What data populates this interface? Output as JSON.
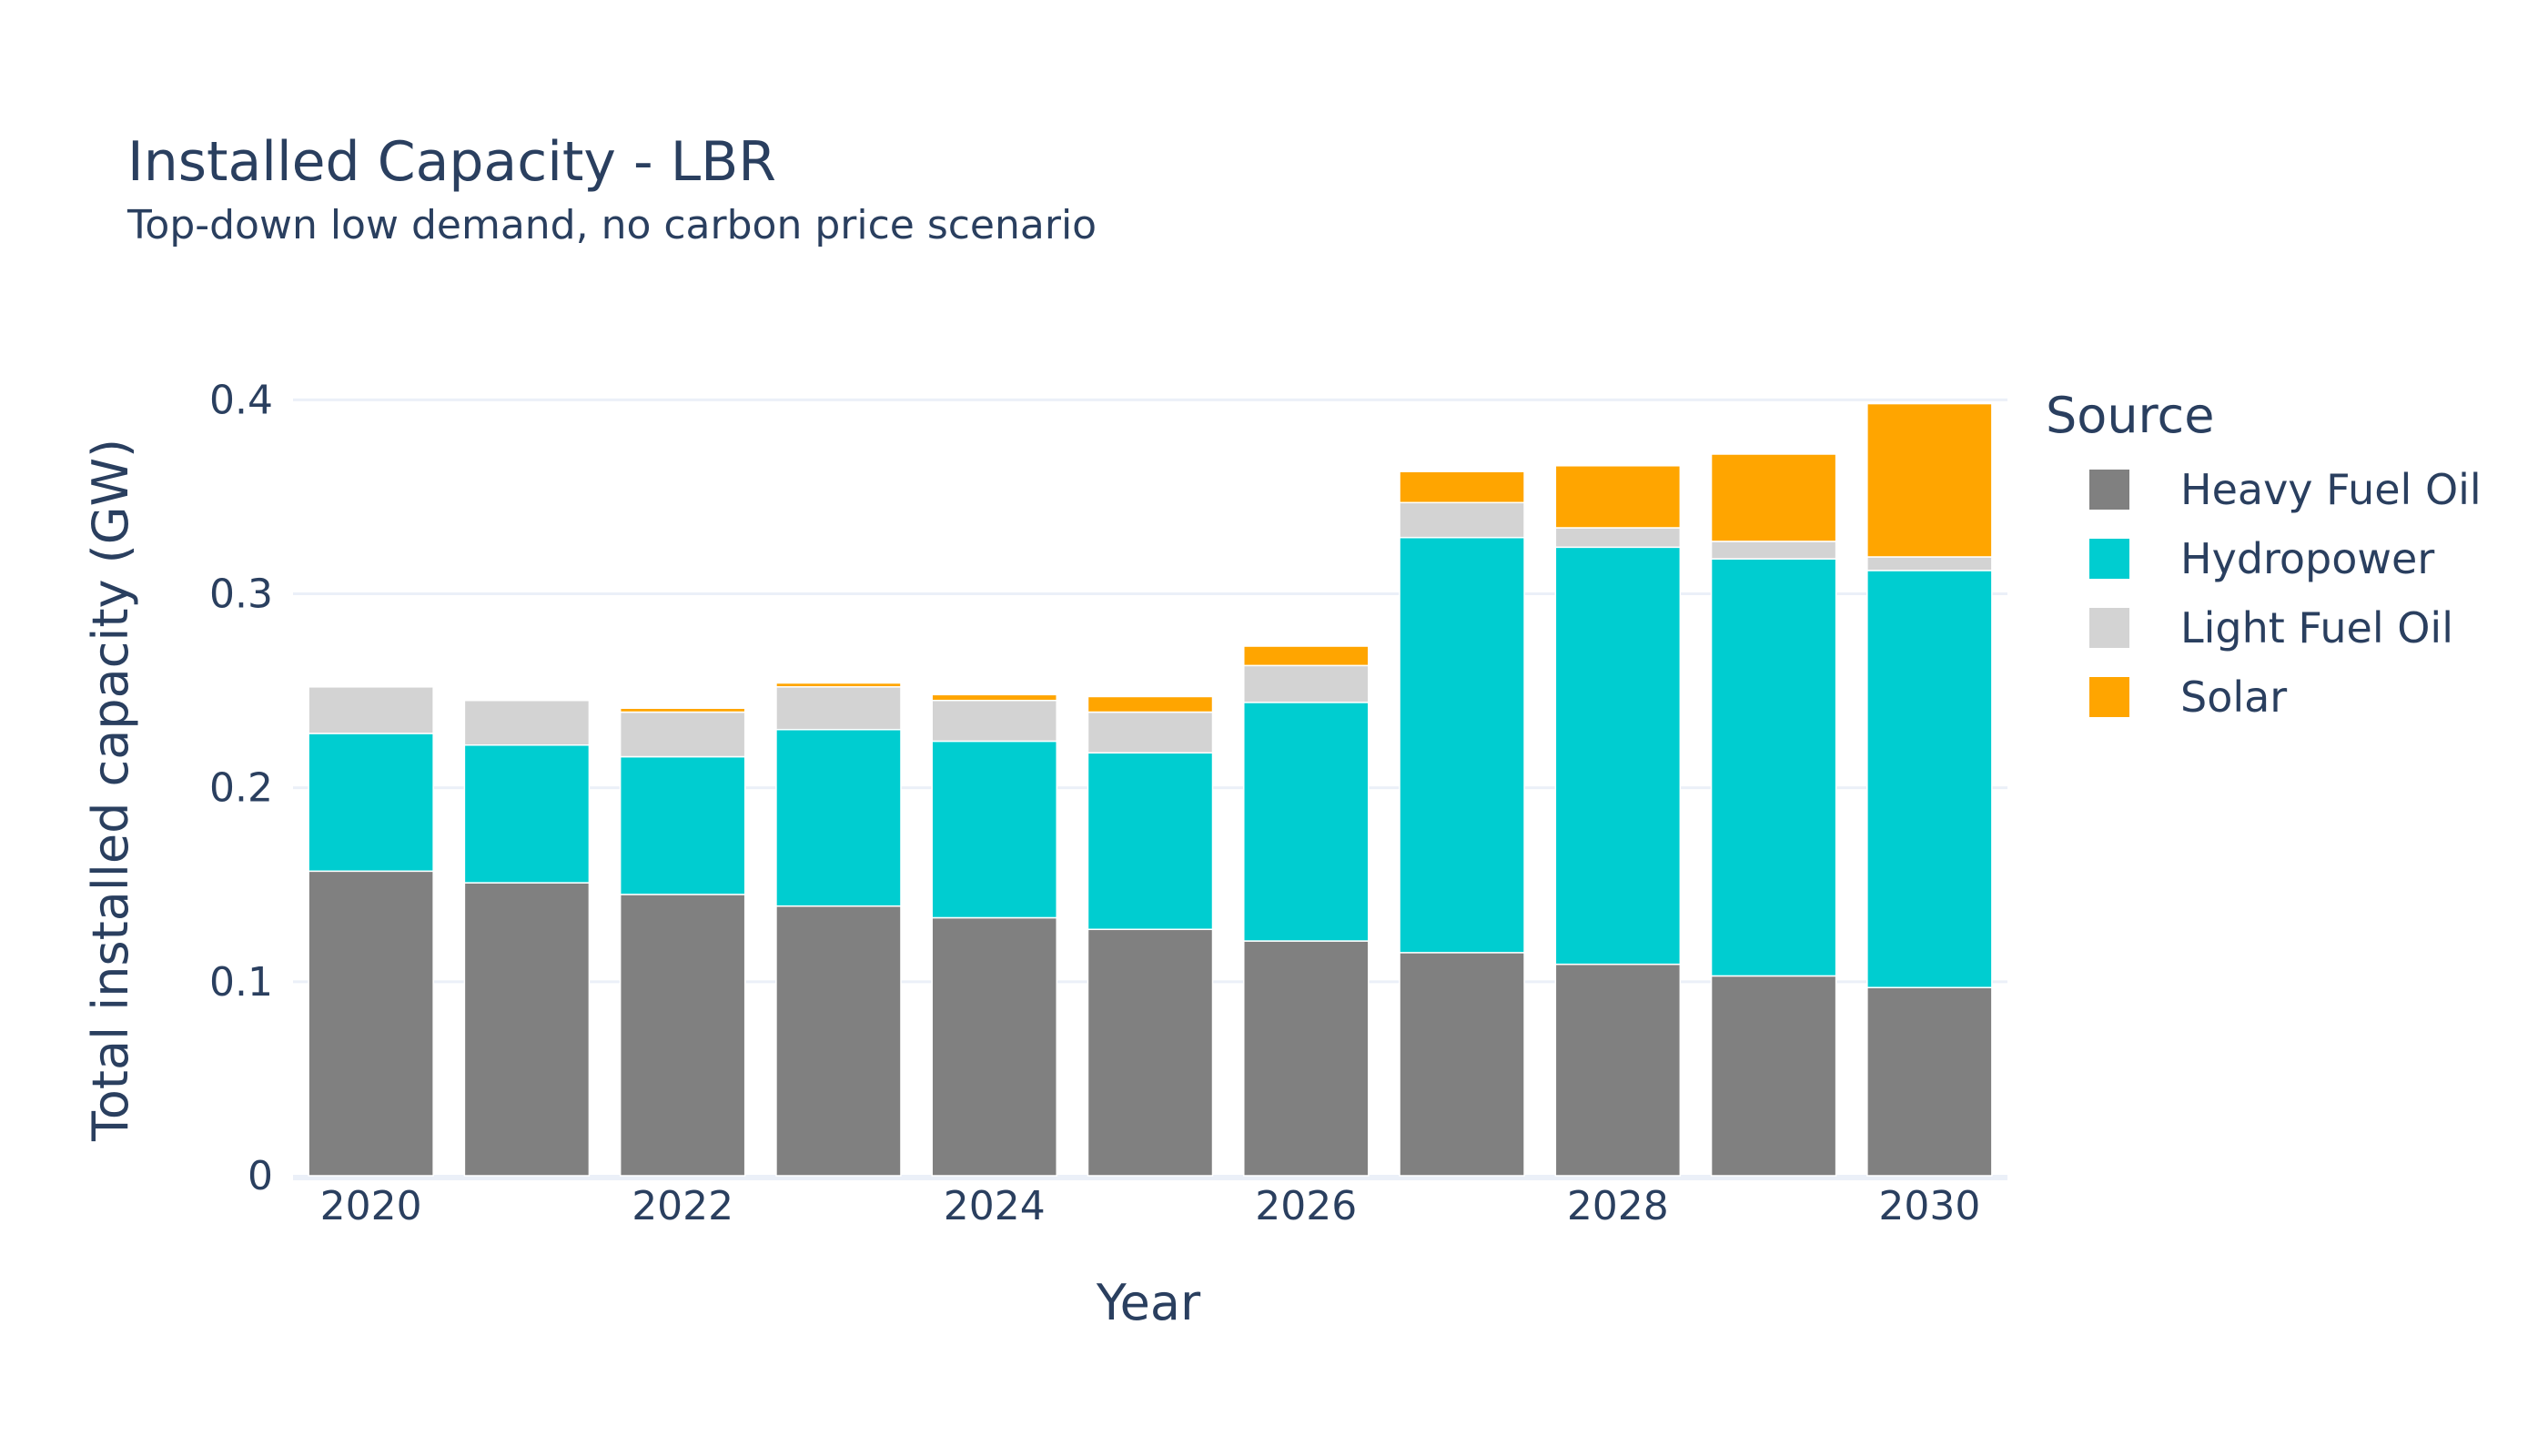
{
  "chart_data": {
    "type": "bar",
    "stacked": true,
    "title": "Installed Capacity - LBR",
    "subtitle": "Top-down low demand, no carbon price scenario",
    "xlabel": "Year",
    "ylabel": "Total installed capacity (GW)",
    "ylim": [
      0,
      0.41
    ],
    "yticks": [
      0,
      0.1,
      0.2,
      0.3,
      0.4
    ],
    "ytick_labels": [
      "0",
      "0.1",
      "0.2",
      "0.3",
      "0.4"
    ],
    "xtick_labels": [
      "2020",
      "2022",
      "2024",
      "2026",
      "2028",
      "2030"
    ],
    "grid": true,
    "legend_title": "Source",
    "legend_position": "right",
    "categories": [
      "2020",
      "2021",
      "2022",
      "2023",
      "2024",
      "2025",
      "2026",
      "2027",
      "2028",
      "2029",
      "2030"
    ],
    "series": [
      {
        "name": "Heavy Fuel Oil",
        "color": "#808080",
        "values": [
          0.157,
          0.151,
          0.145,
          0.139,
          0.133,
          0.127,
          0.121,
          0.115,
          0.109,
          0.103,
          0.097
        ]
      },
      {
        "name": "Hydropower",
        "color": "#00cdd0",
        "values": [
          0.071,
          0.071,
          0.071,
          0.091,
          0.091,
          0.091,
          0.123,
          0.214,
          0.215,
          0.215,
          0.215
        ]
      },
      {
        "name": "Light Fuel Oil",
        "color": "#d3d3d3",
        "values": [
          0.024,
          0.023,
          0.023,
          0.022,
          0.021,
          0.021,
          0.019,
          0.018,
          0.01,
          0.009,
          0.007
        ]
      },
      {
        "name": "Solar",
        "color": "#ffa500",
        "values": [
          0.0,
          0.0,
          0.002,
          0.002,
          0.003,
          0.008,
          0.01,
          0.016,
          0.032,
          0.045,
          0.079
        ]
      }
    ]
  }
}
